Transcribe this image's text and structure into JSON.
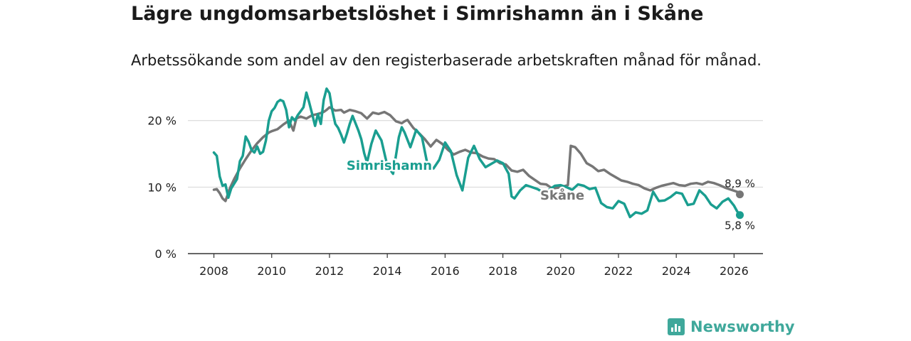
{
  "header": {
    "title": "Lägre ungdomsarbetslöshet i Simrishamn än i Skåne",
    "subtitle": "Arbetssökande som andel av den registerbaserade arbetskraften månad för månad."
  },
  "brand": {
    "name": "Newsworthy",
    "color": "#3fa89b"
  },
  "chart_data": {
    "type": "line",
    "title": "Lägre ungdomsarbetslöshet i Simrishamn än i Skåne",
    "subtitle": "Arbetssökande som andel av den registerbaserade arbetskraften månad för månad.",
    "xlim": [
      2007.1,
      2027.0
    ],
    "ylim": [
      0,
      22
    ],
    "x_ticks": [
      2008,
      2010,
      2012,
      2014,
      2016,
      2018,
      2020,
      2022,
      2024,
      2026
    ],
    "x_tick_labels": [
      "2008",
      "2010",
      "2012",
      "2014",
      "2016",
      "2018",
      "2020",
      "2022",
      "2024",
      "2026"
    ],
    "y_ticks": [
      0,
      10,
      20
    ],
    "y_tick_labels": [
      "0 %",
      "10 %",
      "20 %"
    ],
    "grid": true,
    "series": [
      {
        "name": "Skåne",
        "color": "#767676",
        "end_label": "8,9 %",
        "x": [
          2008.0,
          2008.1,
          2008.2,
          2008.3,
          2008.4,
          2008.55,
          2008.7,
          2008.9,
          2009.1,
          2009.3,
          2009.5,
          2009.7,
          2009.9,
          2010.0,
          2010.2,
          2010.4,
          2010.6,
          2010.75,
          2010.85,
          2011.0,
          2011.2,
          2011.4,
          2011.6,
          2011.8,
          2011.9,
          2012.0,
          2012.2,
          2012.4,
          2012.5,
          2012.7,
          2012.9,
          2013.1,
          2013.3,
          2013.5,
          2013.7,
          2013.9,
          2014.1,
          2014.3,
          2014.5,
          2014.6,
          2014.7,
          2014.9,
          2015.1,
          2015.3,
          2015.5,
          2015.7,
          2015.9,
          2016.1,
          2016.3,
          2016.5,
          2016.7,
          2016.9,
          2017.1,
          2017.3,
          2017.5,
          2017.7,
          2017.9,
          2018.1,
          2018.3,
          2018.5,
          2018.7,
          2018.9,
          2019.1,
          2019.3,
          2019.5,
          2019.7,
          2019.9,
          2020.1,
          2020.25,
          2020.35,
          2020.5,
          2020.7,
          2020.9,
          2021.1,
          2021.3,
          2021.5,
          2021.7,
          2021.9,
          2022.1,
          2022.3,
          2022.5,
          2022.7,
          2022.9,
          2023.1,
          2023.3,
          2023.5,
          2023.7,
          2023.9,
          2024.1,
          2024.3,
          2024.5,
          2024.7,
          2024.9,
          2025.1,
          2025.3,
          2025.5,
          2025.7,
          2025.9,
          2026.1,
          2026.2
        ],
        "values": [
          9.6,
          9.7,
          9.1,
          8.3,
          7.9,
          9.8,
          11.2,
          12.8,
          14.2,
          15.5,
          16.6,
          17.5,
          18.2,
          18.4,
          18.7,
          19.4,
          20.0,
          18.5,
          20.3,
          20.6,
          20.3,
          20.8,
          21.0,
          21.3,
          21.6,
          22.0,
          21.5,
          21.6,
          21.2,
          21.6,
          21.4,
          21.1,
          20.3,
          21.2,
          21.0,
          21.3,
          20.8,
          19.9,
          19.6,
          19.9,
          20.1,
          18.9,
          18.1,
          17.2,
          16.1,
          17.1,
          16.5,
          15.6,
          14.9,
          15.3,
          15.6,
          15.2,
          15.1,
          14.6,
          14.3,
          14.2,
          13.6,
          13.4,
          12.5,
          12.3,
          12.6,
          11.7,
          11.1,
          10.5,
          10.4,
          9.8,
          9.9,
          10.1,
          10.3,
          16.2,
          16.0,
          15.0,
          13.6,
          13.1,
          12.4,
          12.6,
          12.0,
          11.5,
          11.0,
          10.8,
          10.5,
          10.3,
          9.8,
          9.5,
          9.9,
          10.2,
          10.4,
          10.6,
          10.3,
          10.2,
          10.5,
          10.6,
          10.4,
          10.8,
          10.6,
          10.3,
          9.9,
          9.6,
          9.3,
          8.9
        ]
      },
      {
        "name": "Simrishamn",
        "color": "#1a9e90",
        "end_label": "5,8 %",
        "x": [
          2008.0,
          2008.1,
          2008.2,
          2008.3,
          2008.4,
          2008.5,
          2008.6,
          2008.8,
          2008.9,
          2009.0,
          2009.1,
          2009.2,
          2009.3,
          2009.4,
          2009.5,
          2009.6,
          2009.7,
          2009.8,
          2009.9,
          2010.0,
          2010.1,
          2010.2,
          2010.3,
          2010.4,
          2010.5,
          2010.6,
          2010.7,
          2010.8,
          2010.9,
          2011.0,
          2011.1,
          2011.2,
          2011.3,
          2011.4,
          2011.5,
          2011.6,
          2011.7,
          2011.8,
          2011.9,
          2012.0,
          2012.1,
          2012.2,
          2012.3,
          2012.4,
          2012.5,
          2012.6,
          2012.7,
          2012.8,
          2012.9,
          2013.0,
          2013.1,
          2013.2,
          2013.3,
          2013.45,
          2013.6,
          2013.8,
          2014.0,
          2014.2,
          2014.4,
          2014.5,
          2014.6,
          2014.8,
          2015.0,
          2015.2,
          2015.4,
          2015.6,
          2015.8,
          2016.0,
          2016.2,
          2016.4,
          2016.6,
          2016.8,
          2017.0,
          2017.2,
          2017.4,
          2017.6,
          2017.8,
          2018.0,
          2018.1,
          2018.2,
          2018.3,
          2018.4,
          2018.6,
          2018.8,
          2019.0,
          2019.2,
          2019.4,
          2019.6,
          2019.8,
          2020.0,
          2020.2,
          2020.4,
          2020.6,
          2020.8,
          2021.0,
          2021.2,
          2021.4,
          2021.6,
          2021.8,
          2022.0,
          2022.2,
          2022.4,
          2022.6,
          2022.8,
          2023.0,
          2023.2,
          2023.4,
          2023.6,
          2023.8,
          2024.0,
          2024.2,
          2024.4,
          2024.6,
          2024.8,
          2025.0,
          2025.2,
          2025.4,
          2025.6,
          2025.8,
          2026.0,
          2026.1,
          2026.2
        ],
        "values": [
          15.2,
          14.7,
          11.6,
          10.2,
          10.4,
          8.4,
          9.8,
          11.2,
          13.9,
          14.7,
          17.6,
          16.8,
          15.6,
          15.2,
          16.1,
          15.0,
          15.3,
          17.0,
          20.0,
          21.4,
          21.9,
          22.8,
          23.1,
          22.9,
          21.6,
          19.0,
          20.5,
          20.0,
          20.8,
          21.4,
          22.0,
          24.2,
          22.7,
          21.0,
          19.2,
          21.0,
          19.5,
          23.1,
          24.8,
          24.1,
          21.5,
          19.5,
          18.9,
          17.9,
          16.7,
          18.0,
          19.5,
          20.7,
          19.6,
          18.5,
          17.2,
          15.1,
          13.7,
          16.5,
          18.5,
          17.0,
          13.2,
          12.0,
          17.5,
          19.0,
          18.2,
          16.0,
          18.6,
          17.5,
          13.2,
          12.8,
          14.1,
          16.7,
          15.4,
          11.8,
          9.5,
          14.4,
          16.2,
          14.2,
          13.0,
          13.5,
          14.0,
          13.6,
          12.8,
          12.0,
          8.6,
          8.3,
          9.5,
          10.3,
          10.0,
          9.7,
          9.2,
          9.6,
          10.2,
          10.3,
          10.0,
          9.6,
          10.4,
          10.2,
          9.7,
          9.9,
          7.6,
          7.0,
          6.8,
          7.9,
          7.5,
          5.5,
          6.2,
          6.0,
          6.5,
          9.3,
          7.9,
          8.0,
          8.5,
          9.2,
          9.0,
          7.3,
          7.5,
          9.5,
          8.7,
          7.4,
          6.8,
          7.8,
          8.3,
          7.2,
          6.4,
          5.8
        ]
      }
    ],
    "annotations": [
      {
        "text": "Simrishamn",
        "series": "Simrishamn"
      },
      {
        "text": "Skåne",
        "series": "Skåne"
      }
    ]
  }
}
